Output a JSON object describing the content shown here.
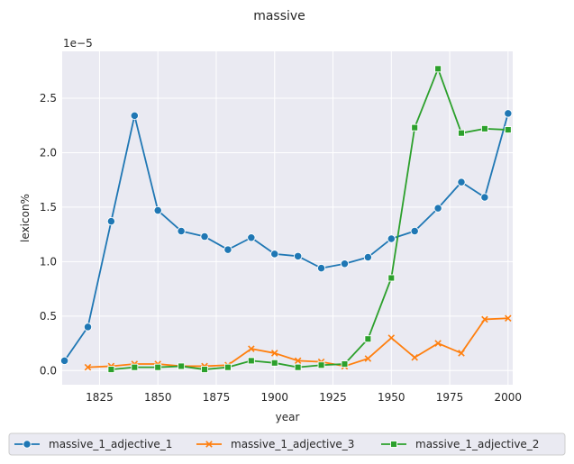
{
  "chart_data": {
    "type": "line",
    "title": "massive",
    "xlabel": "year",
    "ylabel": "lexicon%",
    "y_offset_label": "1e−5",
    "xlim": [
      1809,
      2002
    ],
    "ylim": [
      -0.13,
      2.93
    ],
    "x_ticks": [
      1825,
      1850,
      1875,
      1900,
      1925,
      1950,
      1975,
      2000
    ],
    "y_ticks": [
      0.0,
      0.5,
      1.0,
      1.5,
      2.0,
      2.5
    ],
    "y_tick_labels": [
      "0.0",
      "0.5",
      "1.0",
      "1.5",
      "2.0",
      "2.5"
    ],
    "grid": true,
    "legend_position": "bottom",
    "series": [
      {
        "name": "massive_1_adjective_1",
        "color": "#1f77b4",
        "marker": "circle",
        "x": [
          1810,
          1820,
          1830,
          1840,
          1850,
          1860,
          1870,
          1880,
          1890,
          1900,
          1910,
          1920,
          1930,
          1940,
          1950,
          1960,
          1970,
          1980,
          1990,
          2000
        ],
        "y": [
          0.09,
          0.4,
          1.37,
          2.34,
          1.47,
          1.28,
          1.23,
          1.11,
          1.22,
          1.07,
          1.05,
          0.94,
          0.98,
          1.04,
          1.21,
          1.28,
          1.49,
          1.73,
          1.59,
          2.36
        ]
      },
      {
        "name": "massive_1_adjective_3",
        "color": "#ff7f0e",
        "marker": "x",
        "x": [
          1820,
          1830,
          1840,
          1850,
          1860,
          1870,
          1880,
          1890,
          1900,
          1910,
          1920,
          1930,
          1940,
          1950,
          1960,
          1970,
          1980,
          1990,
          2000
        ],
        "y": [
          0.03,
          0.04,
          0.06,
          0.06,
          0.04,
          0.04,
          0.05,
          0.2,
          0.16,
          0.09,
          0.08,
          0.04,
          0.11,
          0.3,
          0.12,
          0.25,
          0.16,
          0.47,
          0.48
        ]
      },
      {
        "name": "massive_1_adjective_2",
        "color": "#2ca02c",
        "marker": "square",
        "x": [
          1830,
          1840,
          1850,
          1860,
          1870,
          1880,
          1890,
          1900,
          1910,
          1920,
          1930,
          1940,
          1950,
          1960,
          1970,
          1980,
          1990,
          2000
        ],
        "y": [
          0.01,
          0.03,
          0.03,
          0.04,
          0.01,
          0.03,
          0.09,
          0.07,
          0.03,
          0.05,
          0.06,
          0.29,
          0.85,
          2.23,
          2.77,
          2.18,
          2.22,
          2.21
        ]
      }
    ]
  }
}
